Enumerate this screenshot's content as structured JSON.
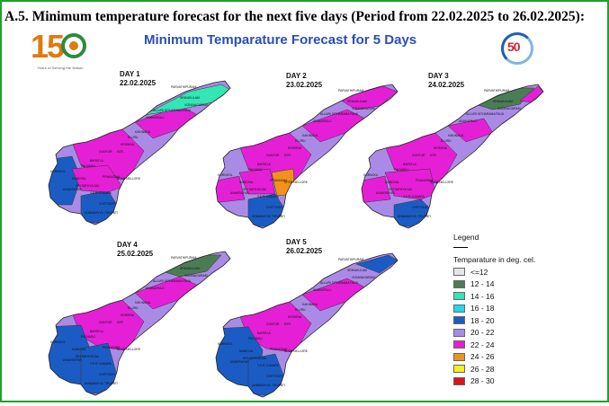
{
  "heading": "A.5. Minimum temperature forecast for the next five days (Period from 22.02.2025 to 26.02.2025):",
  "map_title": "Minimum Temparature Forecast for 5 Days",
  "logo_left": {
    "digits": "150",
    "caption": "Years of Serving the Nation"
  },
  "logo_right": {
    "digits": "50"
  },
  "days": [
    {
      "label": "DAY 1",
      "date": "22.02.2025"
    },
    {
      "label": "DAY 2",
      "date": "23.02.2025"
    },
    {
      "label": "DAY 3",
      "date": "24.02.2025"
    },
    {
      "label": "DAY 4",
      "date": "25.02.2025"
    },
    {
      "label": "DAY 5",
      "date": "26.02.2025"
    }
  ],
  "legend": {
    "title": "Legend",
    "subtitle": "Temparature in deg. cel.",
    "items": [
      {
        "label": "<=12",
        "color": "#e6e6e6"
      },
      {
        "label": "12 - 14",
        "color": "#4b7d54"
      },
      {
        "label": "14 - 16",
        "color": "#33e6b4"
      },
      {
        "label": "16 - 18",
        "color": "#1fd9f2"
      },
      {
        "label": "18 - 20",
        "color": "#1a5cc4"
      },
      {
        "label": "20 - 22",
        "color": "#a98be6"
      },
      {
        "label": "22 - 24",
        "color": "#e51fd6"
      },
      {
        "label": "24 - 26",
        "color": "#f2921c"
      },
      {
        "label": "26 - 28",
        "color": "#f2f21c"
      },
      {
        "label": "28 - 30",
        "color": "#d9121c"
      }
    ]
  },
  "district_labels": [
    "PARVATHIPURAM",
    "SRIKAKULAM",
    "VIZIANAGARAM",
    "ALLURI SITHARAMA RAJU",
    "ANAKAPALLI",
    "KAKINADA",
    "ELURU",
    "KRISHNA",
    "NTR",
    "GUNTUR",
    "BAPATLA",
    "PALNADU",
    "PRAKASAM",
    "KURNOOL",
    "NANDYAL",
    "ANANTAPUR",
    "SRI SATHYA SAI",
    "Y.S.R. KADAPA",
    "ANNAMAYYA",
    "CHITTOOR",
    "TIRUPATI",
    "SPSR NELLORE"
  ]
}
